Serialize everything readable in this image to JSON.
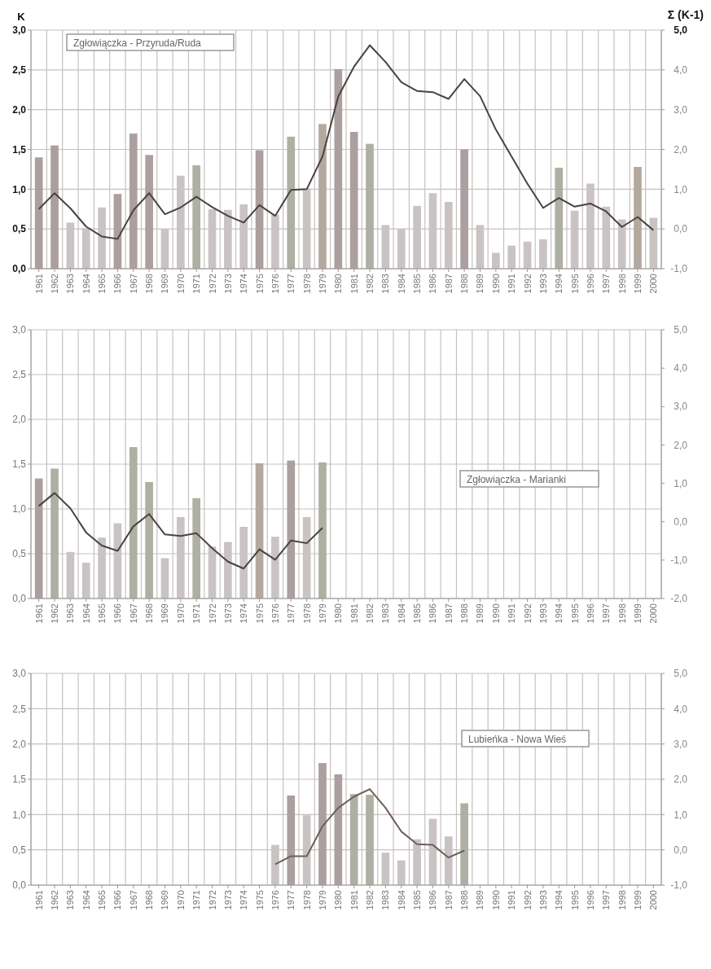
{
  "chart_data": [
    {
      "type": "bar",
      "title": "Zgłowiączka - Przyruda/Ruda",
      "ylabel": "K",
      "y2label": "Σ (K-1)",
      "grid": true,
      "categories": [
        "1961",
        "1962",
        "1963",
        "1964",
        "1965",
        "1966",
        "1967",
        "1968",
        "1969",
        "1970",
        "1971",
        "1972",
        "1973",
        "1974",
        "1975",
        "1976",
        "1977",
        "1978",
        "1979",
        "1980",
        "1981",
        "1982",
        "1983",
        "1984",
        "1985",
        "1986",
        "1987",
        "1988",
        "1989",
        "1990",
        "1991",
        "1992",
        "1993",
        "1994",
        "1995",
        "1996",
        "1997",
        "1998",
        "1999",
        "2000"
      ],
      "ylim": [
        0,
        3
      ],
      "yticks": [
        {
          "value": 0,
          "label": "0,0"
        },
        {
          "value": 0.5,
          "label": "0,5"
        },
        {
          "value": 1,
          "label": "1,0"
        },
        {
          "value": 1.5,
          "label": "1,5"
        },
        {
          "value": 2,
          "label": "2,0"
        },
        {
          "value": 2.5,
          "label": "2,5"
        },
        {
          "value": 3,
          "label": "3,0"
        }
      ],
      "y2lim": [
        -1,
        5
      ],
      "y2ticks": [
        {
          "value": -1,
          "label": "-1,0"
        },
        {
          "value": 0,
          "label": "0,0"
        },
        {
          "value": 1,
          "label": "1,0"
        },
        {
          "value": 2,
          "label": "2,0"
        },
        {
          "value": 3,
          "label": "3,0"
        },
        {
          "value": 4,
          "label": "4,0"
        },
        {
          "value": 5,
          "label": "5,0"
        }
      ],
      "series": [
        {
          "values": [
            1.4,
            1.55,
            0.58,
            0.51,
            0.77,
            0.94,
            1.7,
            1.43,
            0.5,
            1.17,
            1.3,
            0.75,
            0.74,
            0.81,
            1.49,
            0.68,
            1.66,
            1.01,
            1.82,
            2.51,
            1.72,
            1.57,
            0.55,
            0.5,
            0.79,
            0.95,
            0.84,
            1.5,
            0.55,
            0.2,
            0.29,
            0.34,
            0.37,
            1.27,
            0.73,
            1.07,
            0.78,
            0.62,
            1.28,
            0.64
          ],
          "colors": [
            "#ab9f9f",
            "#ab9f9f",
            "#c9c4c3",
            "#c9c4c3",
            "#c9c4c3",
            "#ab9f9f",
            "#ab9f9f",
            "#ab9f9f",
            "#c9c4c3",
            "#c9c4c3",
            "#aeb0a3",
            "#c9c4c3",
            "#c9c4c3",
            "#c9c4c3",
            "#ab9f9f",
            "#c9c4c3",
            "#aeb0a3",
            "#c9c4c3",
            "#b3a99f",
            "#ab9f9f",
            "#ab9f9f",
            "#aeb0a3",
            "#c9c4c3",
            "#c9c4c3",
            "#c9c4c3",
            "#c9c4c3",
            "#c9c4c3",
            "#ab9f9f",
            "#c9c4c3",
            "#c9c4c3",
            "#c9c4c3",
            "#c9c4c3",
            "#c9c4c3",
            "#aeb0a3",
            "#c9c4c3",
            "#c9c4c3",
            "#c9c4c3",
            "#c9c4c3",
            "#b3a99f",
            "#c9c4c3"
          ]
        },
        {
          "type": "line",
          "axis": "y2",
          "color": "#4a4242",
          "values": [
            0.5,
            0.9,
            0.52,
            0.06,
            -0.19,
            -0.25,
            0.47,
            0.9,
            0.37,
            0.54,
            0.81,
            0.55,
            0.33,
            0.16,
            0.6,
            0.33,
            0.98,
            1.0,
            1.82,
            3.33,
            4.08,
            4.62,
            4.2,
            3.69,
            3.47,
            3.44,
            3.27,
            3.77,
            3.34,
            2.5,
            1.82,
            1.14,
            0.53,
            0.78,
            0.56,
            0.64,
            0.44,
            0.05,
            0.3,
            -0.03
          ]
        }
      ]
    },
    {
      "type": "bar",
      "title": "Zgłowiączka - Marianki",
      "grid": true,
      "categories": [
        "1961",
        "1962",
        "1963",
        "1964",
        "1965",
        "1966",
        "1967",
        "1968",
        "1969",
        "1970",
        "1971",
        "1972",
        "1973",
        "1974",
        "1975",
        "1976",
        "1977",
        "1978",
        "1979",
        "1980",
        "1981",
        "1982",
        "1983",
        "1984",
        "1985",
        "1986",
        "1987",
        "1988",
        "1989",
        "1990",
        "1991",
        "1992",
        "1993",
        "1994",
        "1995",
        "1996",
        "1997",
        "1998",
        "1999",
        "2000"
      ],
      "ylim": [
        0,
        3
      ],
      "yticks": [
        {
          "value": 0,
          "label": "0,0"
        },
        {
          "value": 0.5,
          "label": "0,5"
        },
        {
          "value": 1,
          "label": "1,0"
        },
        {
          "value": 1.5,
          "label": "1,5"
        },
        {
          "value": 2,
          "label": "2,0"
        },
        {
          "value": 2.5,
          "label": "2,5"
        },
        {
          "value": 3,
          "label": "3,0"
        }
      ],
      "y2lim": [
        -2,
        5
      ],
      "y2ticks": [
        {
          "value": -2,
          "label": "-2,0"
        },
        {
          "value": -1,
          "label": "-1,0"
        },
        {
          "value": 0,
          "label": "0,0"
        },
        {
          "value": 1,
          "label": "1,0"
        },
        {
          "value": 2,
          "label": "2,0"
        },
        {
          "value": 3,
          "label": "3,0"
        },
        {
          "value": 4,
          "label": "4,0"
        },
        {
          "value": 5,
          "label": "5,0"
        }
      ],
      "series": [
        {
          "values": [
            1.34,
            1.45,
            0.52,
            0.4,
            0.68,
            0.84,
            1.69,
            1.3,
            0.45,
            0.91,
            1.12,
            0.58,
            0.63,
            0.8,
            1.51,
            0.69,
            1.54,
            0.91,
            1.52,
            null,
            null,
            null,
            null,
            null,
            null,
            null,
            null,
            null,
            null,
            null,
            null,
            null,
            null,
            null,
            null,
            null,
            null,
            null,
            null,
            null
          ],
          "colors": [
            "#ab9f9f",
            "#aeb0a3",
            "#c9c4c3",
            "#c9c4c3",
            "#c9c4c3",
            "#c9c4c3",
            "#aeb0a3",
            "#aeb0a3",
            "#c9c4c3",
            "#c9c4c3",
            "#aeb0a3",
            "#c9c4c3",
            "#c9c4c3",
            "#c9c4c3",
            "#b3a99f",
            "#c9c4c3",
            "#ab9f9f",
            "#c9c4c3",
            "#aeb0a3",
            null,
            null,
            null,
            null,
            null,
            null,
            null,
            null,
            null,
            null,
            null,
            null,
            null,
            null,
            null,
            null,
            null,
            null,
            null,
            null,
            null
          ]
        },
        {
          "type": "line",
          "axis": "y2",
          "color": "#4a4242",
          "values": [
            0.41,
            0.75,
            0.35,
            -0.28,
            -0.62,
            -0.76,
            -0.12,
            0.2,
            -0.33,
            -0.37,
            -0.3,
            -0.69,
            -1.04,
            -1.22,
            -0.72,
            -0.99,
            -0.49,
            -0.56,
            -0.16,
            null,
            null,
            null,
            null,
            null,
            null,
            null,
            null,
            null,
            null,
            null,
            null,
            null,
            null,
            null,
            null,
            null,
            null,
            null,
            null,
            null
          ]
        }
      ]
    },
    {
      "type": "bar",
      "title": "Lubieńka - Nowa Wieś",
      "grid": true,
      "categories": [
        "1961",
        "1962",
        "1963",
        "1964",
        "1965",
        "1966",
        "1967",
        "1968",
        "1969",
        "1970",
        "1971",
        "1972",
        "1973",
        "1974",
        "1975",
        "1976",
        "1977",
        "1978",
        "1979",
        "1980",
        "1981",
        "1982",
        "1983",
        "1984",
        "1985",
        "1986",
        "1987",
        "1988",
        "1989",
        "1990",
        "1991",
        "1992",
        "1993",
        "1994",
        "1995",
        "1996",
        "1997",
        "1998",
        "1999",
        "2000"
      ],
      "ylim": [
        0,
        3
      ],
      "yticks": [
        {
          "value": 0,
          "label": "0,0"
        },
        {
          "value": 0.5,
          "label": "0,5"
        },
        {
          "value": 1,
          "label": "1,0"
        },
        {
          "value": 1.5,
          "label": "1,5"
        },
        {
          "value": 2,
          "label": "2,0"
        },
        {
          "value": 2.5,
          "label": "2,5"
        },
        {
          "value": 3,
          "label": "3,0"
        }
      ],
      "y2lim": [
        -1,
        5
      ],
      "y2ticks": [
        {
          "value": -1,
          "label": "-1,0"
        },
        {
          "value": 0,
          "label": "0,0"
        },
        {
          "value": 1,
          "label": "1,0"
        },
        {
          "value": 2,
          "label": "2,0"
        },
        {
          "value": 3,
          "label": "3,0"
        },
        {
          "value": 4,
          "label": "4,0"
        },
        {
          "value": 5,
          "label": "5,0"
        }
      ],
      "series": [
        {
          "values": [
            null,
            null,
            null,
            null,
            null,
            null,
            null,
            null,
            null,
            null,
            null,
            null,
            null,
            null,
            null,
            0.57,
            1.27,
            0.99,
            1.73,
            1.57,
            1.29,
            1.28,
            0.46,
            0.35,
            0.65,
            0.94,
            0.69,
            1.16,
            null,
            null,
            null,
            null,
            null,
            null,
            null,
            null,
            null,
            null,
            null,
            null
          ],
          "colors": [
            null,
            null,
            null,
            null,
            null,
            null,
            null,
            null,
            null,
            null,
            null,
            null,
            null,
            null,
            null,
            "#c9c4c3",
            "#ab9f9f",
            "#c9c4c3",
            "#ab9f9f",
            "#ab9f9f",
            "#aeb0a3",
            "#aeb0a3",
            "#c9c4c3",
            "#c9c4c3",
            "#c9c4c3",
            "#c9c4c3",
            "#c9c4c3",
            "#aeb0a3",
            null,
            null,
            null,
            null,
            null,
            null,
            null,
            null,
            null,
            null,
            null,
            null
          ]
        },
        {
          "type": "line",
          "axis": "y2",
          "color": "#6e5e5e",
          "values": [
            null,
            null,
            null,
            null,
            null,
            null,
            null,
            null,
            null,
            null,
            null,
            null,
            null,
            null,
            null,
            -0.41,
            -0.18,
            -0.18,
            0.67,
            1.19,
            1.51,
            1.72,
            1.19,
            0.52,
            0.16,
            0.14,
            -0.22,
            -0.02,
            null,
            null,
            null,
            null,
            null,
            null,
            null,
            null,
            null,
            null,
            null,
            null
          ]
        }
      ]
    }
  ]
}
